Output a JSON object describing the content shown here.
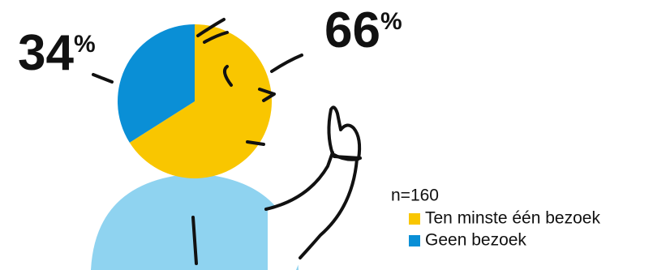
{
  "chart_data": {
    "type": "pie",
    "categories": [
      "Ten minste één bezoek",
      "Geen bezoek"
    ],
    "values": [
      66,
      34
    ],
    "value_labels": [
      "66%",
      "34%"
    ],
    "colors": [
      "#f9c600",
      "#0a8fd6"
    ],
    "note": "n=160"
  }
}
